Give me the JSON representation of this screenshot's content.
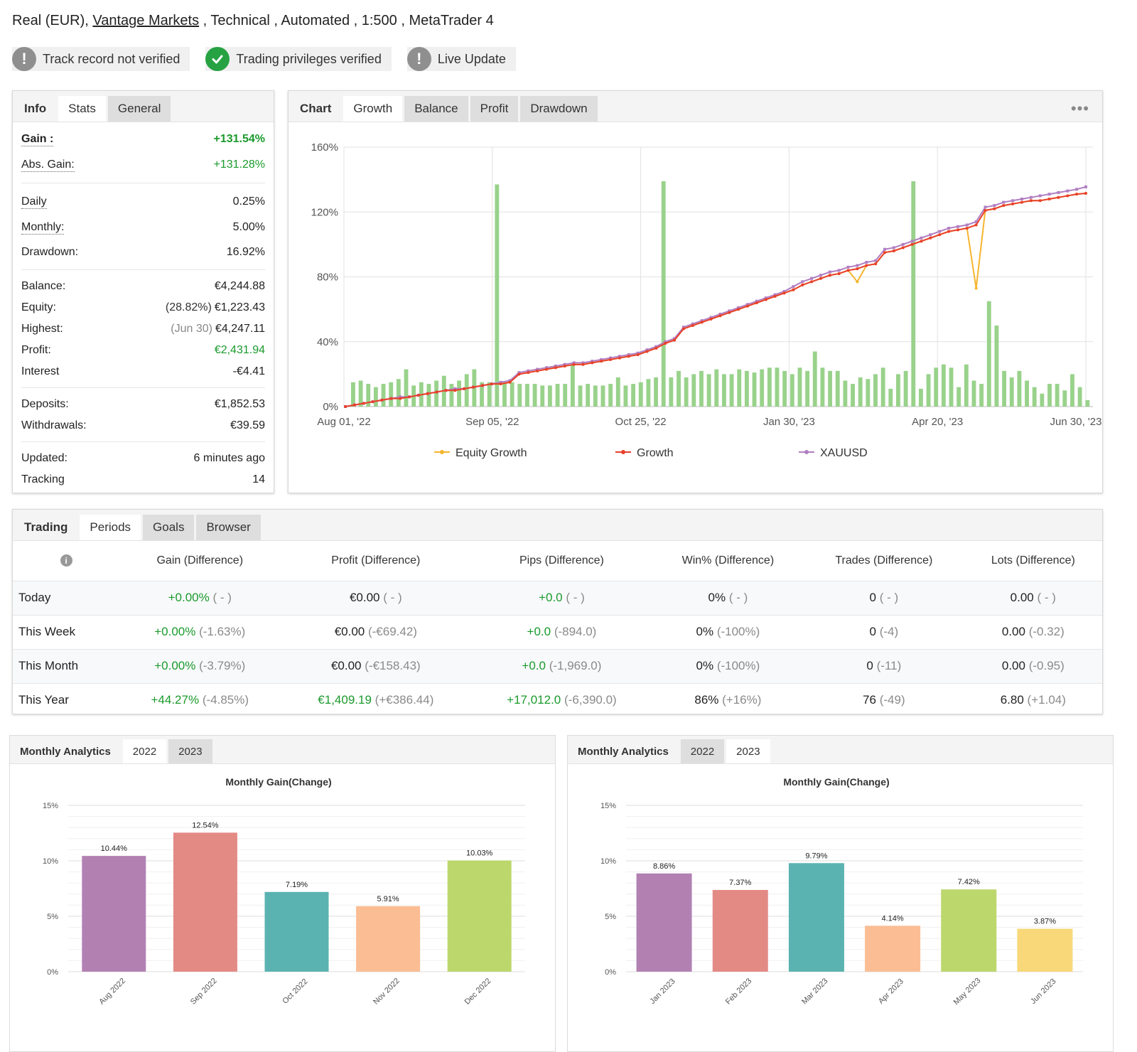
{
  "header": {
    "prefix": "Real (EUR), ",
    "broker": "Vantage Markets",
    "suffix": " , Technical , Automated , 1:500 , MetaTrader 4"
  },
  "badges": [
    {
      "label": "Track record not verified",
      "icon": "exclamation-icon",
      "color": "#8f8f8f"
    },
    {
      "label": "Trading privileges verified",
      "icon": "check-icon",
      "color": "#27a243"
    },
    {
      "label": "Live Update",
      "icon": "exclamation-icon",
      "color": "#8f8f8f"
    }
  ],
  "info": {
    "tabs": [
      "Info",
      "Stats",
      "General"
    ],
    "gain_label": "Gain :",
    "gain_value": "+131.54%",
    "abs_gain_label": "Abs. Gain:",
    "abs_gain_value": "+131.28%",
    "daily_label": "Daily",
    "daily_value": "0.25%",
    "monthly_label": "Monthly:",
    "monthly_value": "5.00%",
    "drawdown_label": "Drawdown:",
    "drawdown_value": "16.92%",
    "balance_label": "Balance:",
    "balance_value": "€4,244.88",
    "equity_label": "Equity:",
    "equity_sub": "(28.82%)",
    "equity_value": "€1,223.43",
    "highest_label": "Highest:",
    "highest_sub": "(Jun 30)",
    "highest_value": "€4,247.11",
    "profit_label": "Profit:",
    "profit_value": "€2,431.94",
    "interest_label": "Interest",
    "interest_value": "-€4.41",
    "deposits_label": "Deposits:",
    "deposits_value": "€1,852.53",
    "withdrawals_label": "Withdrawals:",
    "withdrawals_value": "€39.59",
    "updated_label": "Updated:",
    "updated_value": "6 minutes ago",
    "tracking_label": "Tracking",
    "tracking_value": "14"
  },
  "chart_panel": {
    "tabs": [
      "Chart",
      "Growth",
      "Balance",
      "Profit",
      "Drawdown"
    ],
    "more": "•••"
  },
  "chart_data": [
    {
      "type": "line",
      "x_labels": [
        "Aug 01, '22",
        "Sep 05, '22",
        "Oct 25, '22",
        "Jan 30, '23",
        "Apr 20, '23",
        "Jun 30, '23"
      ],
      "ylim": [
        0,
        160
      ],
      "y_ticks": [
        "0%",
        "40%",
        "80%",
        "120%",
        "160%"
      ],
      "series": [
        {
          "name": "Equity Growth",
          "color": "#f6b52e"
        },
        {
          "name": "Growth",
          "color": "#e8402a"
        },
        {
          "name": "XAUUSD",
          "color": "#b17fc2"
        }
      ],
      "growth": [
        0,
        1,
        2,
        3,
        4,
        5,
        5,
        6,
        7,
        8,
        9,
        10,
        10,
        11,
        12,
        13,
        14,
        14,
        15,
        20,
        21,
        22,
        23,
        24,
        25,
        26,
        26,
        27,
        28,
        29,
        30,
        31,
        32,
        34,
        36,
        39,
        41,
        48,
        50,
        52,
        54,
        56,
        58,
        60,
        62,
        64,
        66,
        68,
        70,
        72,
        75,
        77,
        79,
        81,
        82,
        84,
        85,
        87,
        88,
        95,
        96,
        98,
        100,
        102,
        104,
        106,
        108,
        109,
        110,
        112,
        121,
        122,
        124,
        125,
        126,
        127,
        127,
        128,
        129,
        130,
        131,
        131.5
      ],
      "xauusd": [
        0,
        1,
        2,
        3,
        4,
        5,
        6,
        6,
        7,
        8,
        9,
        10,
        11,
        11,
        12,
        13,
        14,
        15,
        16,
        21,
        22,
        23,
        24,
        25,
        26,
        27,
        27,
        28,
        29,
        30,
        31,
        32,
        33,
        35,
        37,
        40,
        42,
        49,
        51,
        53,
        55,
        57,
        59,
        61,
        63,
        65,
        67,
        69,
        71,
        74,
        77,
        79,
        81,
        83,
        84,
        86,
        87,
        89,
        90,
        97,
        98,
        100,
        102,
        104,
        106,
        108,
        110,
        111,
        112,
        114,
        123,
        124,
        126,
        127,
        128,
        129,
        130,
        131,
        132,
        133,
        134,
        135.5
      ],
      "equity_dip": {
        "index": 69,
        "value": 73,
        "early_dip": 77
      },
      "bars": [
        15,
        16,
        14,
        12,
        14,
        15,
        17,
        23,
        13,
        15,
        14,
        16,
        19,
        14,
        16,
        20,
        23,
        15,
        15,
        137,
        15,
        15,
        14,
        14,
        14,
        13,
        13,
        14,
        14,
        26,
        13,
        14,
        13,
        13,
        14,
        18,
        13,
        14,
        15,
        17,
        18,
        139,
        18,
        22,
        18,
        20,
        22,
        20,
        23,
        20,
        20,
        23,
        22,
        21,
        23,
        24,
        24,
        22,
        20,
        24,
        22,
        34,
        24,
        22,
        22,
        16,
        14,
        18,
        17,
        20,
        24,
        11,
        20,
        22,
        139,
        11,
        20,
        24,
        26,
        24,
        12,
        26,
        16,
        14,
        65,
        50,
        22,
        18,
        22,
        16,
        12,
        8,
        14,
        14,
        10,
        20,
        12,
        4
      ]
    },
    {
      "type": "bar",
      "title": "Monthly Gain(Change)",
      "categories": [
        "Aug 2022",
        "Sep 2022",
        "Oct 2022",
        "Nov 2022",
        "Dec 2022"
      ],
      "values": [
        10.44,
        12.54,
        7.19,
        5.91,
        10.03
      ],
      "labels": [
        "10.44%",
        "12.54%",
        "7.19%",
        "5.91%",
        "10.03%"
      ],
      "colors": [
        "#b281b2",
        "#e38a85",
        "#5ab3b0",
        "#fbbd94",
        "#bcd76c"
      ],
      "ylim": [
        0,
        15
      ],
      "y_ticks": [
        "0%",
        "5%",
        "10%",
        "15%"
      ]
    },
    {
      "type": "bar",
      "title": "Monthly Gain(Change)",
      "categories": [
        "Jan 2023",
        "Feb 2023",
        "Mar 2023",
        "Apr 2023",
        "May 2023",
        "Jun 2023"
      ],
      "values": [
        8.86,
        7.37,
        9.79,
        4.14,
        7.42,
        3.87
      ],
      "labels": [
        "8.86%",
        "7.37%",
        "9.79%",
        "4.14%",
        "7.42%",
        "3.87%"
      ],
      "colors": [
        "#b281b2",
        "#e38a85",
        "#5ab3b0",
        "#fbbd94",
        "#bcd76c",
        "#f8d879"
      ],
      "ylim": [
        0,
        15
      ],
      "y_ticks": [
        "0%",
        "5%",
        "10%",
        "15%"
      ]
    }
  ],
  "trading": {
    "tabs": [
      "Trading",
      "Periods",
      "Goals",
      "Browser"
    ],
    "columns": [
      "Gain (Difference)",
      "Profit (Difference)",
      "Pips (Difference)",
      "Win% (Difference)",
      "Trades (Difference)",
      "Lots (Difference)"
    ],
    "rows": [
      {
        "period": "Today",
        "cells": [
          [
            "+0.00%",
            "( - )"
          ],
          [
            "€0.00",
            "( - )"
          ],
          [
            "+0.0",
            "( - )"
          ],
          [
            "0%",
            "( - )"
          ],
          [
            "0",
            "( - )"
          ],
          [
            "0.00",
            "( - )"
          ]
        ]
      },
      {
        "period": "This Week",
        "cells": [
          [
            "+0.00%",
            "(-1.63%)"
          ],
          [
            "€0.00",
            "(-€69.42)"
          ],
          [
            "+0.0",
            "(-894.0)"
          ],
          [
            "0%",
            "(-100%)"
          ],
          [
            "0",
            "(-4)"
          ],
          [
            "0.00",
            "(-0.32)"
          ]
        ]
      },
      {
        "period": "This Month",
        "cells": [
          [
            "+0.00%",
            "(-3.79%)"
          ],
          [
            "€0.00",
            "(-€158.43)"
          ],
          [
            "+0.0",
            "(-1,969.0)"
          ],
          [
            "0%",
            "(-100%)"
          ],
          [
            "0",
            "(-11)"
          ],
          [
            "0.00",
            "(-0.95)"
          ]
        ]
      },
      {
        "period": "This Year",
        "cells": [
          [
            "+44.27%",
            "(-4.85%)"
          ],
          [
            "€1,409.19",
            "(+€386.44)"
          ],
          [
            "+17,012.0",
            "(-6,390.0)"
          ],
          [
            "86%",
            "(+16%)"
          ],
          [
            "76",
            "(-49)"
          ],
          [
            "6.80",
            "(+1.04)"
          ]
        ]
      }
    ]
  },
  "monthly_2022": {
    "tabs": [
      "Monthly Analytics",
      "2022",
      "2023"
    ]
  },
  "monthly_2023": {
    "tabs": [
      "Monthly Analytics",
      "2022",
      "2023"
    ]
  }
}
